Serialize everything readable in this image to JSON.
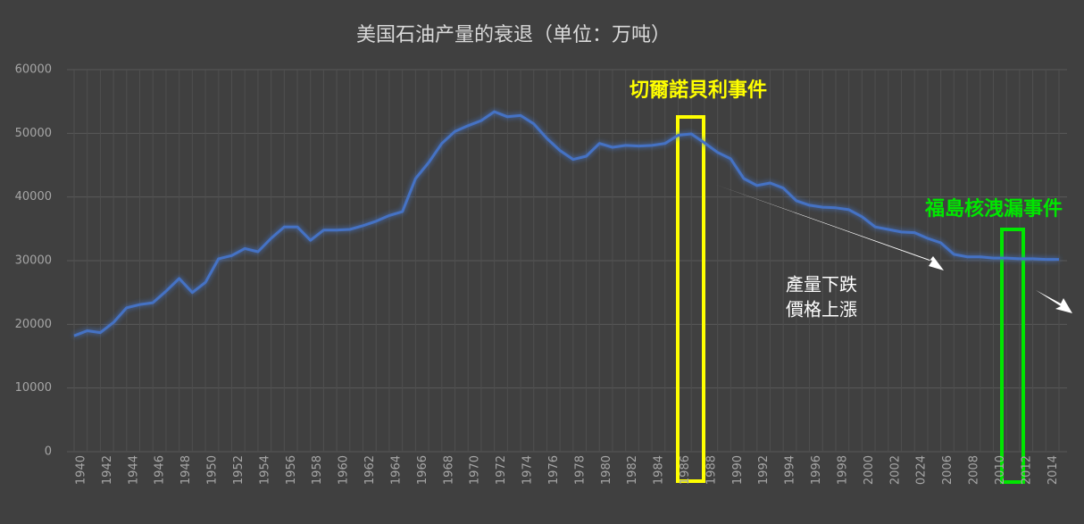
{
  "chart_data": {
    "type": "line",
    "title": "美国石油产量的衰退（单位：万吨）",
    "categories": [
      "1940",
      null,
      "1942",
      null,
      "1944",
      null,
      "1946",
      null,
      "1948",
      null,
      "1950",
      null,
      "1952",
      null,
      "1954",
      null,
      "1956",
      null,
      "1958",
      null,
      "1960",
      null,
      "1962",
      null,
      "1964",
      null,
      "1966",
      null,
      "1968",
      null,
      "1970",
      null,
      "1972",
      null,
      "1974",
      null,
      "1976",
      null,
      "1978",
      null,
      "1980",
      null,
      "1982",
      null,
      "1984",
      null,
      "1986",
      null,
      "1988",
      null,
      "1990",
      null,
      "1992",
      null,
      "1994",
      null,
      "1996",
      null,
      "1998",
      null,
      "2000",
      null,
      "2002",
      null,
      "0224",
      null,
      "2006",
      null,
      "2008",
      null,
      "2010",
      null,
      "2012",
      null,
      "2014",
      null
    ],
    "series": [
      {
        "color": "#4472c4",
        "values": [
          18200,
          19000,
          18700,
          20300,
          22600,
          23100,
          23400,
          25200,
          27200,
          25000,
          26600,
          30300,
          30800,
          31900,
          31400,
          33500,
          35300,
          35300,
          33200,
          34800,
          34800,
          34900,
          35500,
          36200,
          37100,
          37700,
          42900,
          45400,
          48400,
          50300,
          51200,
          52000,
          53400,
          52600,
          52800,
          51500,
          49200,
          47300,
          45900,
          46400,
          48400,
          47800,
          48100,
          48000,
          48100,
          48400,
          49700,
          49900,
          48500,
          47000,
          46000,
          42900,
          41800,
          42200,
          41400,
          39400,
          38700,
          38400,
          38300,
          38000,
          36900,
          35300,
          34900,
          34500,
          34400,
          33500,
          32800,
          31000,
          30600,
          30600,
          30400,
          30400,
          30300,
          30300,
          30200,
          30200
        ]
      }
    ],
    "ylim": [
      0,
      60000
    ],
    "yticks": [
      0,
      10000,
      20000,
      30000,
      40000,
      50000,
      60000
    ],
    "grid": true,
    "annotations": [
      "切爾諾貝利事件",
      "福島核洩漏事件",
      "產量下跌",
      "價格上漲"
    ]
  }
}
